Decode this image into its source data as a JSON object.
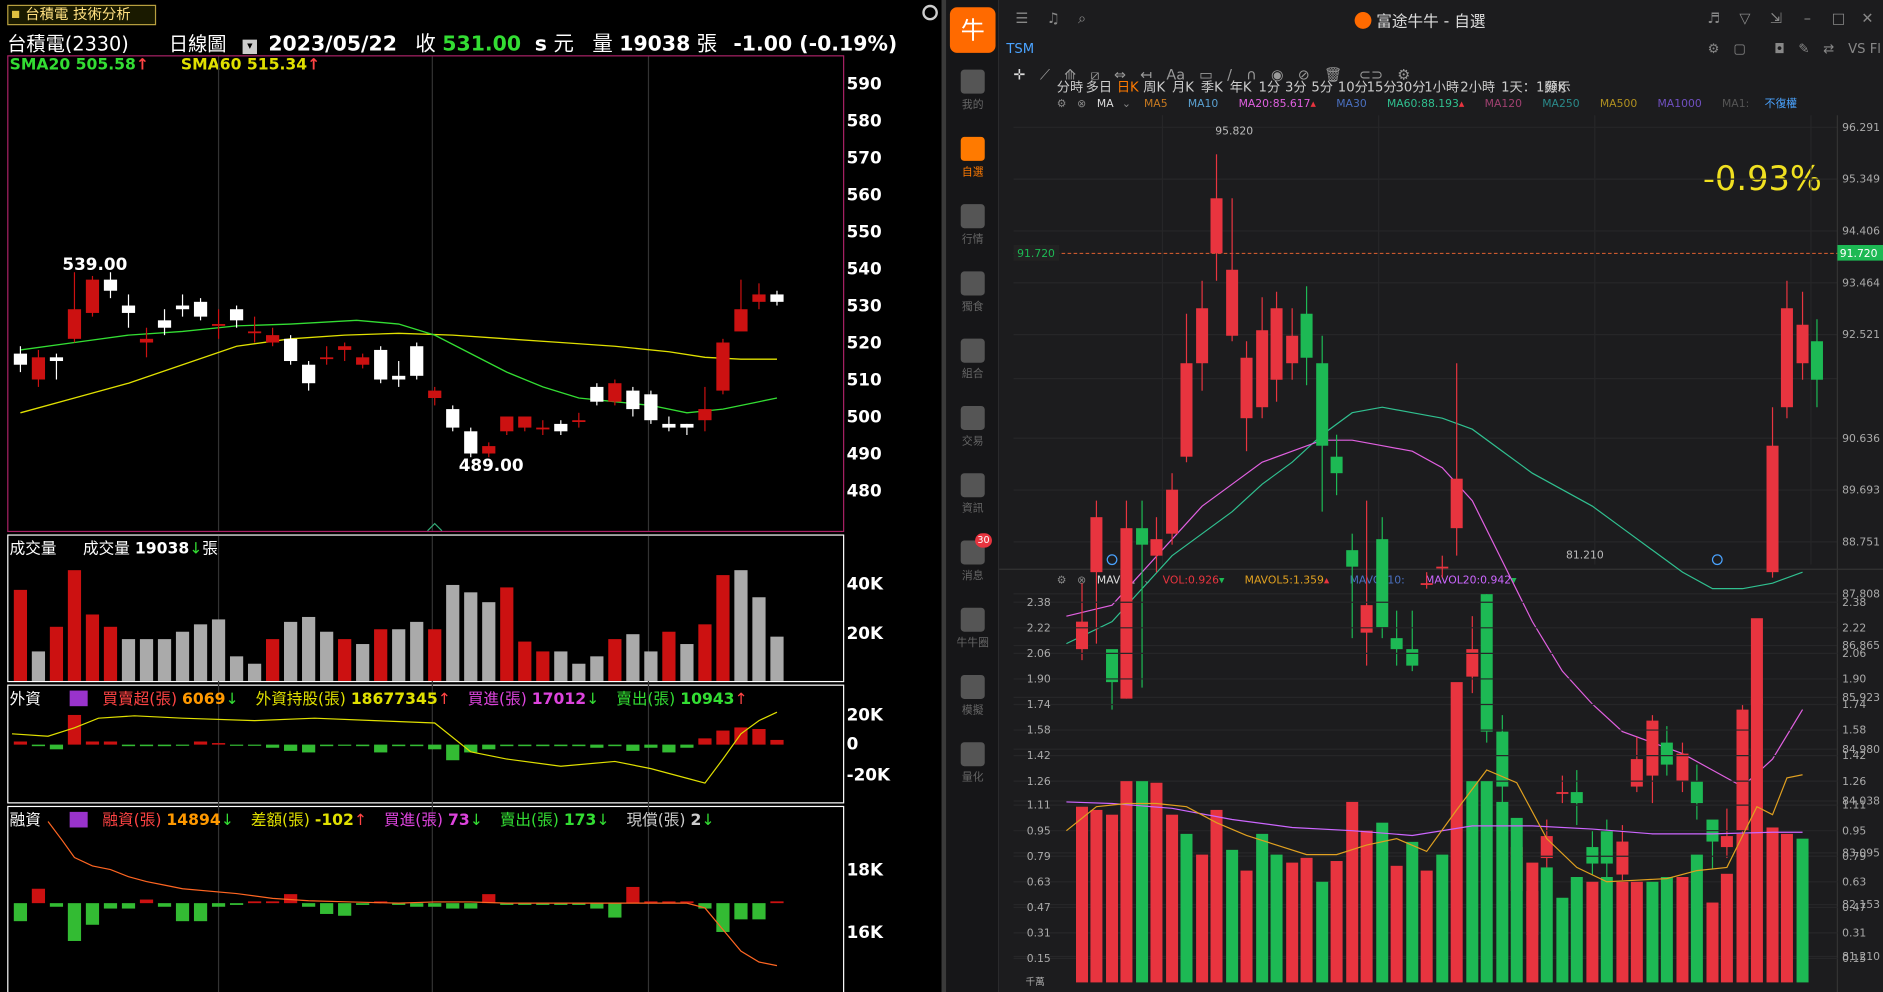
{
  "left": {
    "tab_title": "台積電 技術分析",
    "stock": "台積電(2330)",
    "period": "日線圖",
    "date": "2023/05/22",
    "close_label": "收",
    "close": "531.00",
    "unit_s": "s",
    "unit_yuan": "元",
    "vol_label": "量",
    "volume": "19038",
    "vol_unit": "張",
    "change": "-1.00 (-0.19%)",
    "sma20": "SMA20 505.58",
    "sma60": "SMA60 515.34",
    "price_axis": [
      "590",
      "580",
      "570",
      "560",
      "550",
      "540",
      "530",
      "520",
      "510",
      "500",
      "490",
      "480"
    ],
    "high_label": "539.00",
    "low_label": "489.00",
    "vol_panel": {
      "title": "成交量",
      "info_label": "成交量",
      "info_value": "19038",
      "info_unit": "張",
      "axis": [
        "40K",
        "20K"
      ]
    },
    "foreign": {
      "title": "外資",
      "f1_label": "買賣超(張)",
      "f1_value": "6069",
      "f2_label": "外資持股(張)",
      "f2_value": "18677345",
      "f3_label": "買進(張)",
      "f3_value": "17012",
      "f4_label": "賣出(張)",
      "f4_value": "10943",
      "axis": [
        "20K",
        "0",
        "-20K"
      ]
    },
    "margin": {
      "title": "融資",
      "f1_label": "融資(張)",
      "f1_value": "14894",
      "f2_label": "差額(張)",
      "f2_value": "-102",
      "f3_label": "買進(張)",
      "f3_value": "73",
      "f4_label": "賣出(張)",
      "f4_value": "173",
      "f5_label": "現償(張)",
      "f5_value": "2",
      "axis": [
        "18K",
        "16K"
      ]
    },
    "arrow_up": "↑",
    "arrow_down": "↓",
    "colors": {
      "up": "#cc1111",
      "down": "#ffffff",
      "sma20": "#33dd33",
      "sma60": "#e0e000",
      "label_up": "#ff4444",
      "label_down": "#33dd33"
    }
  },
  "right": {
    "title": "富途牛牛 - 自選",
    "ticker": "TSM",
    "timeframes": [
      "分時",
      "多日",
      "日K",
      "周K",
      "月K",
      "季K",
      "年K",
      "1分",
      "3分",
      "5分",
      "10分",
      "15分",
      "30分",
      "1小時",
      "2小時",
      "1天：1分K",
      "顯示"
    ],
    "active_timeframe": "日K",
    "vs_label": "VS Fl",
    "sidebar": [
      "我的",
      "自選",
      "行情",
      "獨食",
      "組合",
      "交易",
      "資訊",
      "消息",
      "牛牛圈",
      "模擬",
      "量化"
    ],
    "notification_count": "30",
    "ma_bar": {
      "ma": "MA",
      "ma5": "MA5",
      "ma10": "MA10",
      "ma20": "MA20:",
      "ma20v": "85.617",
      "ma30": "MA30",
      "ma60": "MA60:",
      "ma60v": "88.193",
      "ma120": "MA120",
      "ma250": "MA250",
      "ma500": "MA500",
      "ma1000": "MA1000",
      "ma1": "MA1:",
      "adj": "不復權"
    },
    "price_axis": [
      "96.291",
      "95.349",
      "94.406",
      "93.464",
      "92.521",
      "91.720",
      "90.636",
      "89.693",
      "88.751",
      "87.808",
      "86.865",
      "85.923",
      "84.980",
      "84.038",
      "83.095",
      "82.153",
      "81.210"
    ],
    "current_price": "91.720",
    "pct_change": "-0.93%",
    "high_label": "95.820",
    "low_label": "81.210",
    "vol_bar": {
      "mavol": "MAVOL",
      "vol": "VOL:",
      "volv": "0.926",
      "mavol5": "MAVOL5:",
      "mavol5v": "1.359",
      "mavol10": "MAVOL10:",
      "mavol20": "MAVOL20:",
      "mavol20v": "0.942"
    },
    "vol_axis": [
      "2.38",
      "2.22",
      "2.06",
      "1.90",
      "1.74",
      "1.58",
      "1.42",
      "1.26",
      "1.11",
      "0.95",
      "0.79",
      "0.63",
      "0.47",
      "0.31",
      "0.15",
      "千萬"
    ],
    "colors": {
      "up": "#e8343f",
      "down": "#1db954",
      "ma20": "#e060e0",
      "ma60": "#30c090",
      "mavol5": "#e0a020",
      "mavol20": "#cc66ff",
      "accent": "#ff7a00"
    }
  }
}
